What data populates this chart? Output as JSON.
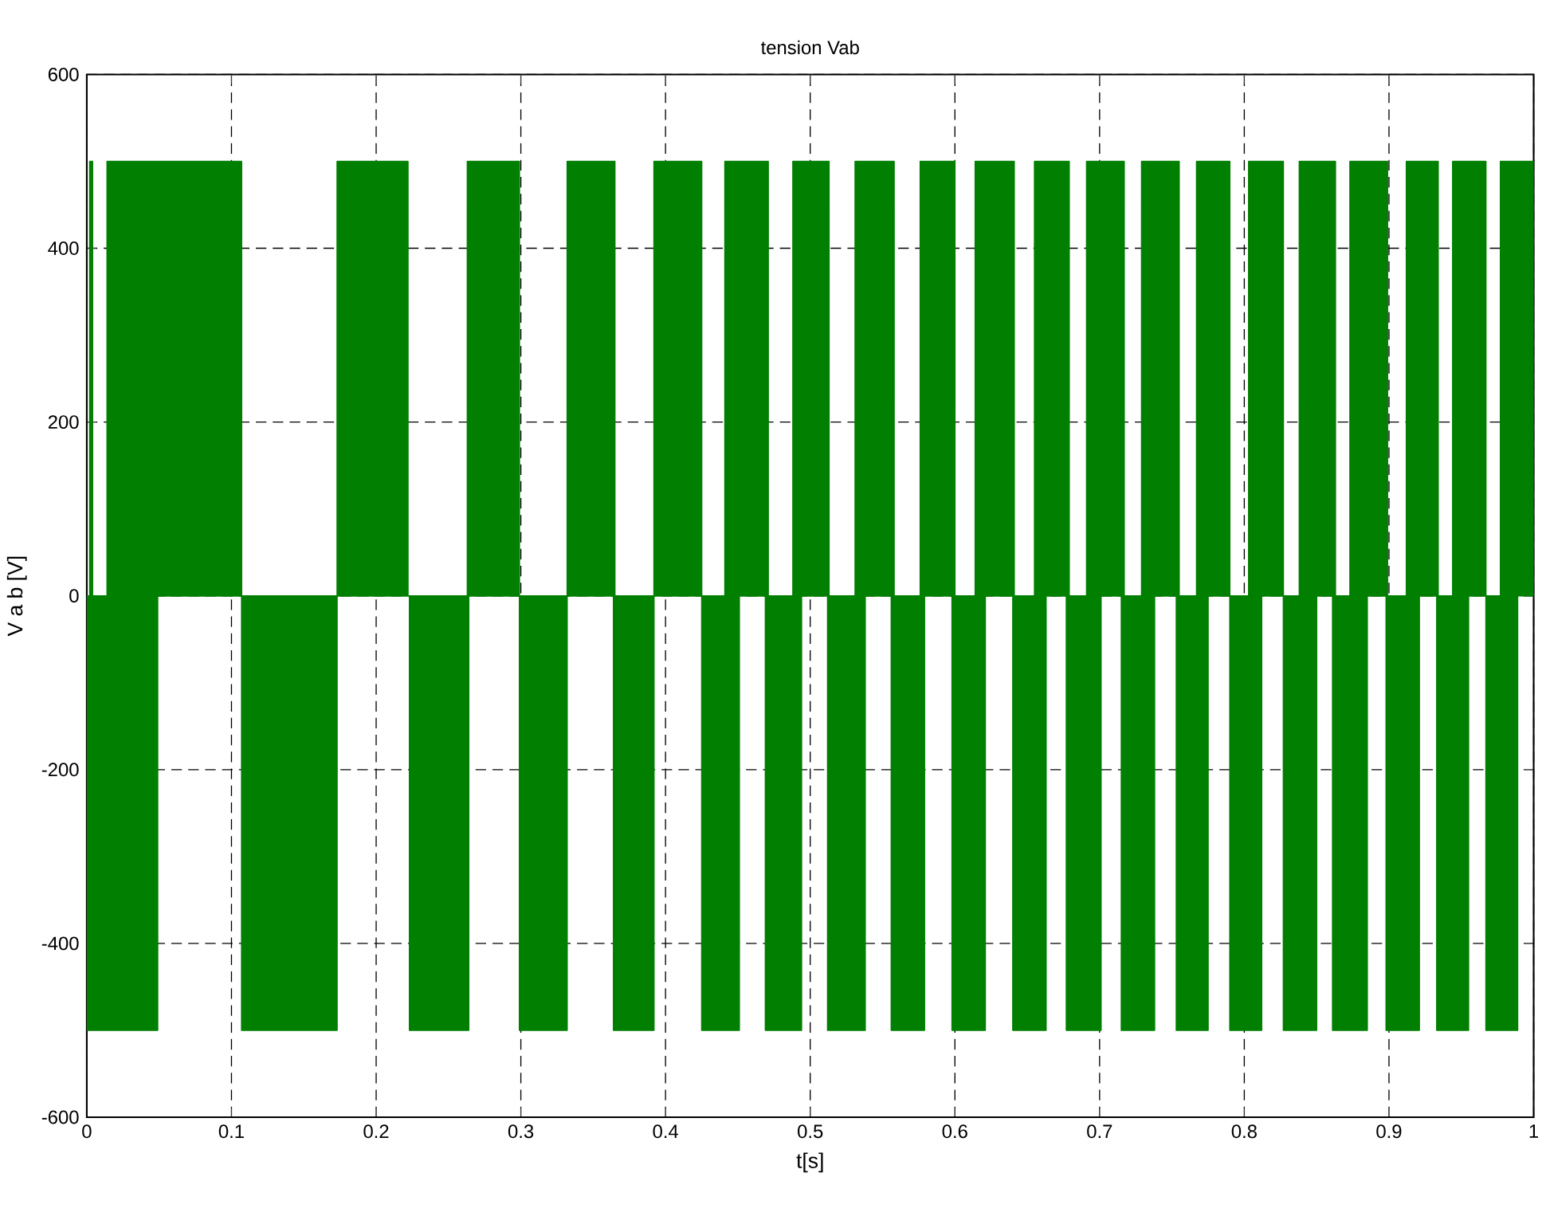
{
  "chart_data": {
    "type": "area",
    "title": "tension Vab",
    "xlabel": "t[s]",
    "ylabel": "V a b  [V]",
    "xlim": [
      0,
      1
    ],
    "ylim": [
      -600,
      600
    ],
    "xticks": [
      0,
      0.1,
      0.2,
      0.3,
      0.4,
      0.5,
      0.6,
      0.7,
      0.8,
      0.9,
      1
    ],
    "yticks": [
      -600,
      -400,
      -200,
      0,
      200,
      400,
      600
    ],
    "grid": true,
    "line_style": "solid",
    "series": [
      {
        "color": "#007f00",
        "x": [
          0.002,
          0.002,
          0.004,
          0.004,
          0.014,
          0.014,
          0.107,
          0.107,
          0.173,
          0.173,
          0.222,
          0.222,
          0.263,
          0.263,
          0.299,
          0.299,
          0.332,
          0.332,
          0.365,
          0.365,
          0.392,
          0.392,
          0.425,
          0.425,
          0.441,
          0.441,
          0.471,
          0.471,
          0.488,
          0.488,
          0.513,
          0.513,
          0.531,
          0.531,
          0.558,
          0.558,
          0.576,
          0.576,
          0.6,
          0.6,
          0.614,
          0.614,
          0.641,
          0.641,
          0.655,
          0.655,
          0.679,
          0.679,
          0.691,
          0.691,
          0.717,
          0.717,
          0.729,
          0.729,
          0.755,
          0.755,
          0.767,
          0.767,
          0.79,
          0.79,
          0.803,
          0.803,
          0.827,
          0.827,
          0.838,
          0.838,
          0.863,
          0.863,
          0.873,
          0.873,
          0.899,
          0.899,
          0.912,
          0.912,
          0.934,
          0.934,
          0.944,
          0.944,
          0.967,
          0.967,
          0.977,
          0.977,
          1.0,
          1.0
        ],
        "values": [
          0,
          500,
          500,
          0,
          0,
          500,
          500,
          0,
          0,
          500,
          500,
          0,
          0,
          500,
          500,
          0,
          0,
          500,
          500,
          0,
          0,
          500,
          500,
          0,
          0,
          500,
          500,
          0,
          0,
          500,
          500,
          0,
          0,
          500,
          500,
          0,
          0,
          500,
          500,
          0,
          0,
          500,
          500,
          0,
          0,
          500,
          500,
          0,
          0,
          500,
          500,
          0,
          0,
          500,
          500,
          0,
          0,
          500,
          500,
          0,
          0,
          500,
          500,
          0,
          0,
          500,
          500,
          0,
          0,
          500,
          500,
          0,
          0,
          500,
          500,
          0,
          0,
          500,
          500,
          0,
          0,
          500,
          500,
          0
        ]
      },
      {
        "color": "#007f00",
        "x": [
          0.0,
          0.0,
          0.049,
          0.049,
          0.107,
          0.107,
          0.173,
          0.173,
          0.223,
          0.223,
          0.264,
          0.264,
          0.299,
          0.299,
          0.332,
          0.332,
          0.364,
          0.364,
          0.392,
          0.392,
          0.425,
          0.425,
          0.451,
          0.451,
          0.469,
          0.469,
          0.494,
          0.494,
          0.512,
          0.512,
          0.538,
          0.538,
          0.556,
          0.556,
          0.579,
          0.579,
          0.598,
          0.598,
          0.621,
          0.621,
          0.64,
          0.64,
          0.663,
          0.663,
          0.677,
          0.677,
          0.701,
          0.701,
          0.715,
          0.715,
          0.738,
          0.738,
          0.753,
          0.753,
          0.775,
          0.775,
          0.79,
          0.79,
          0.812,
          0.812,
          0.827,
          0.827,
          0.85,
          0.85,
          0.861,
          0.861,
          0.885,
          0.885,
          0.898,
          0.898,
          0.921,
          0.921,
          0.933,
          0.933,
          0.955,
          0.955,
          0.967,
          0.967,
          0.989,
          0.989
        ],
        "values": [
          0,
          -500,
          -500,
          0,
          0,
          -500,
          -500,
          0,
          0,
          -500,
          -500,
          0,
          0,
          -500,
          -500,
          0,
          0,
          -500,
          -500,
          0,
          0,
          -500,
          -500,
          0,
          0,
          -500,
          -500,
          0,
          0,
          -500,
          -500,
          0,
          0,
          -500,
          -500,
          0,
          0,
          -500,
          -500,
          0,
          0,
          -500,
          -500,
          0,
          0,
          -500,
          -500,
          0,
          0,
          -500,
          -500,
          0,
          0,
          -500,
          -500,
          0,
          0,
          -500,
          -500,
          0,
          0,
          -500,
          -500,
          0,
          0,
          -500,
          -500,
          0,
          0,
          -500,
          -500,
          0,
          0,
          -500,
          -500,
          0,
          0,
          -500,
          -500,
          0
        ]
      }
    ]
  }
}
